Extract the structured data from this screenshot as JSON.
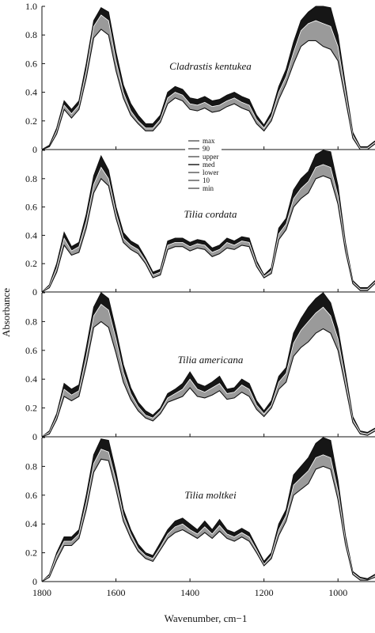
{
  "chart_data": [
    {
      "type": "area",
      "title": "Cladrastis kentukea",
      "ylim": [
        0,
        1.0
      ],
      "yticks": [
        "0",
        "0.2",
        "0.4",
        "0.6",
        "0.8",
        "1.0"
      ],
      "x": [
        1800,
        1780,
        1760,
        1740,
        1720,
        1700,
        1680,
        1660,
        1640,
        1620,
        1600,
        1580,
        1560,
        1540,
        1520,
        1500,
        1480,
        1460,
        1440,
        1420,
        1400,
        1380,
        1360,
        1340,
        1320,
        1300,
        1280,
        1260,
        1240,
        1220,
        1200,
        1180,
        1160,
        1140,
        1120,
        1100,
        1080,
        1060,
        1040,
        1020,
        1000,
        980,
        960,
        940,
        920,
        900
      ],
      "series": [
        {
          "values": [
            0.0,
            0.03,
            0.15,
            0.34,
            0.28,
            0.34,
            0.6,
            0.9,
            0.99,
            0.96,
            0.68,
            0.45,
            0.32,
            0.24,
            0.18,
            0.18,
            0.24,
            0.4,
            0.44,
            0.42,
            0.36,
            0.35,
            0.37,
            0.34,
            0.35,
            0.38,
            0.4,
            0.37,
            0.35,
            0.24,
            0.17,
            0.26,
            0.44,
            0.56,
            0.75,
            0.9,
            0.96,
            1.0,
            1.0,
            0.99,
            0.8,
            0.45,
            0.12,
            0.02,
            0.02,
            0.06
          ]
        },
        {
          "values": [
            0.0,
            0.02,
            0.13,
            0.31,
            0.25,
            0.31,
            0.55,
            0.86,
            0.94,
            0.9,
            0.62,
            0.4,
            0.27,
            0.2,
            0.15,
            0.15,
            0.21,
            0.36,
            0.4,
            0.38,
            0.32,
            0.31,
            0.33,
            0.3,
            0.31,
            0.34,
            0.36,
            0.33,
            0.31,
            0.21,
            0.15,
            0.23,
            0.4,
            0.51,
            0.68,
            0.83,
            0.88,
            0.9,
            0.88,
            0.86,
            0.72,
            0.4,
            0.1,
            0.01,
            0.01,
            0.05
          ]
        },
        {
          "values": [
            0.0,
            0.02,
            0.11,
            0.28,
            0.22,
            0.28,
            0.5,
            0.78,
            0.84,
            0.8,
            0.55,
            0.36,
            0.24,
            0.18,
            0.13,
            0.13,
            0.19,
            0.32,
            0.36,
            0.34,
            0.28,
            0.27,
            0.29,
            0.26,
            0.27,
            0.3,
            0.32,
            0.29,
            0.27,
            0.18,
            0.13,
            0.2,
            0.35,
            0.46,
            0.6,
            0.72,
            0.76,
            0.76,
            0.72,
            0.7,
            0.62,
            0.35,
            0.08,
            0.0,
            0.0,
            0.04
          ]
        }
      ]
    },
    {
      "type": "area",
      "title": "Tilia cordata",
      "ylim": [
        0,
        1.0
      ],
      "yticks": [
        "0",
        "0.2",
        "0.4",
        "0.6",
        "0.8",
        ""
      ],
      "x": [
        1800,
        1780,
        1760,
        1740,
        1720,
        1700,
        1680,
        1660,
        1640,
        1620,
        1600,
        1580,
        1560,
        1540,
        1520,
        1500,
        1480,
        1460,
        1440,
        1420,
        1400,
        1380,
        1360,
        1340,
        1320,
        1300,
        1280,
        1260,
        1240,
        1220,
        1200,
        1180,
        1160,
        1140,
        1120,
        1100,
        1080,
        1060,
        1040,
        1020,
        1000,
        980,
        960,
        940,
        920,
        900
      ],
      "series": [
        {
          "values": [
            0.0,
            0.05,
            0.2,
            0.42,
            0.32,
            0.35,
            0.55,
            0.82,
            0.96,
            0.86,
            0.6,
            0.42,
            0.36,
            0.33,
            0.24,
            0.14,
            0.16,
            0.36,
            0.38,
            0.38,
            0.35,
            0.37,
            0.36,
            0.31,
            0.33,
            0.38,
            0.36,
            0.39,
            0.38,
            0.22,
            0.12,
            0.17,
            0.45,
            0.52,
            0.72,
            0.8,
            0.85,
            0.97,
            1.0,
            0.99,
            0.75,
            0.35,
            0.08,
            0.03,
            0.03,
            0.08
          ]
        },
        {
          "values": [
            0.0,
            0.04,
            0.17,
            0.38,
            0.29,
            0.32,
            0.5,
            0.76,
            0.88,
            0.8,
            0.56,
            0.38,
            0.33,
            0.3,
            0.22,
            0.12,
            0.14,
            0.33,
            0.35,
            0.35,
            0.32,
            0.34,
            0.33,
            0.28,
            0.3,
            0.35,
            0.33,
            0.36,
            0.35,
            0.2,
            0.11,
            0.15,
            0.41,
            0.48,
            0.66,
            0.73,
            0.78,
            0.88,
            0.9,
            0.88,
            0.68,
            0.32,
            0.07,
            0.02,
            0.02,
            0.07
          ]
        },
        {
          "values": [
            0.0,
            0.03,
            0.14,
            0.33,
            0.26,
            0.28,
            0.45,
            0.7,
            0.8,
            0.75,
            0.52,
            0.35,
            0.3,
            0.27,
            0.2,
            0.1,
            0.12,
            0.3,
            0.32,
            0.32,
            0.29,
            0.31,
            0.3,
            0.25,
            0.27,
            0.31,
            0.3,
            0.33,
            0.32,
            0.18,
            0.1,
            0.13,
            0.37,
            0.44,
            0.6,
            0.66,
            0.7,
            0.8,
            0.82,
            0.8,
            0.62,
            0.29,
            0.06,
            0.01,
            0.01,
            0.06
          ]
        }
      ]
    },
    {
      "type": "area",
      "title": "Tilia americana",
      "ylim": [
        0,
        1.0
      ],
      "yticks": [
        "0",
        "0.2",
        "0.4",
        "0.6",
        "0.8",
        ""
      ],
      "x": [
        1800,
        1780,
        1760,
        1740,
        1720,
        1700,
        1680,
        1660,
        1640,
        1620,
        1600,
        1580,
        1560,
        1540,
        1520,
        1500,
        1480,
        1460,
        1440,
        1420,
        1400,
        1380,
        1360,
        1340,
        1320,
        1300,
        1280,
        1260,
        1240,
        1220,
        1200,
        1180,
        1160,
        1140,
        1120,
        1100,
        1080,
        1060,
        1040,
        1020,
        1000,
        980,
        960,
        940,
        920,
        900
      ],
      "series": [
        {
          "values": [
            0.0,
            0.04,
            0.16,
            0.37,
            0.33,
            0.36,
            0.62,
            0.9,
            1.0,
            0.96,
            0.74,
            0.5,
            0.34,
            0.24,
            0.18,
            0.15,
            0.2,
            0.3,
            0.33,
            0.37,
            0.45,
            0.37,
            0.35,
            0.38,
            0.42,
            0.33,
            0.34,
            0.4,
            0.37,
            0.25,
            0.18,
            0.25,
            0.42,
            0.48,
            0.72,
            0.82,
            0.9,
            0.96,
            1.0,
            0.93,
            0.75,
            0.45,
            0.14,
            0.04,
            0.03,
            0.06
          ]
        },
        {
          "values": [
            0.0,
            0.03,
            0.14,
            0.33,
            0.29,
            0.32,
            0.56,
            0.84,
            0.92,
            0.88,
            0.68,
            0.45,
            0.3,
            0.21,
            0.15,
            0.13,
            0.18,
            0.27,
            0.3,
            0.33,
            0.4,
            0.33,
            0.31,
            0.34,
            0.37,
            0.3,
            0.31,
            0.36,
            0.33,
            0.22,
            0.16,
            0.22,
            0.38,
            0.44,
            0.65,
            0.74,
            0.8,
            0.86,
            0.9,
            0.84,
            0.68,
            0.4,
            0.12,
            0.03,
            0.02,
            0.05
          ]
        },
        {
          "values": [
            0.0,
            0.02,
            0.12,
            0.28,
            0.25,
            0.28,
            0.5,
            0.76,
            0.8,
            0.76,
            0.58,
            0.38,
            0.26,
            0.18,
            0.13,
            0.11,
            0.16,
            0.24,
            0.26,
            0.28,
            0.34,
            0.28,
            0.27,
            0.29,
            0.32,
            0.26,
            0.27,
            0.31,
            0.28,
            0.19,
            0.14,
            0.2,
            0.33,
            0.38,
            0.56,
            0.62,
            0.66,
            0.72,
            0.75,
            0.72,
            0.6,
            0.35,
            0.1,
            0.02,
            0.01,
            0.04
          ]
        }
      ]
    },
    {
      "type": "area",
      "title": "Tilia moltkei",
      "ylim": [
        0,
        1.0
      ],
      "yticks": [
        "0",
        "0.2",
        "0.4",
        "0.6",
        "0.8",
        ""
      ],
      "x": [
        1800,
        1780,
        1760,
        1740,
        1720,
        1700,
        1680,
        1660,
        1640,
        1620,
        1600,
        1580,
        1560,
        1540,
        1520,
        1500,
        1480,
        1460,
        1440,
        1420,
        1400,
        1380,
        1360,
        1340,
        1320,
        1300,
        1280,
        1260,
        1240,
        1220,
        1200,
        1180,
        1160,
        1140,
        1120,
        1100,
        1080,
        1060,
        1040,
        1020,
        1000,
        980,
        960,
        940,
        920,
        900
      ],
      "series": [
        {
          "values": [
            0.0,
            0.05,
            0.2,
            0.31,
            0.31,
            0.36,
            0.6,
            0.88,
            0.99,
            0.98,
            0.76,
            0.5,
            0.36,
            0.26,
            0.2,
            0.18,
            0.27,
            0.36,
            0.42,
            0.44,
            0.4,
            0.36,
            0.42,
            0.36,
            0.43,
            0.36,
            0.34,
            0.37,
            0.34,
            0.24,
            0.14,
            0.2,
            0.4,
            0.5,
            0.74,
            0.8,
            0.86,
            0.96,
            1.0,
            0.98,
            0.7,
            0.32,
            0.07,
            0.03,
            0.02,
            0.05
          ]
        },
        {
          "values": [
            0.0,
            0.04,
            0.18,
            0.28,
            0.28,
            0.33,
            0.55,
            0.82,
            0.92,
            0.9,
            0.7,
            0.46,
            0.33,
            0.23,
            0.18,
            0.16,
            0.24,
            0.33,
            0.38,
            0.4,
            0.36,
            0.33,
            0.38,
            0.33,
            0.39,
            0.33,
            0.31,
            0.34,
            0.31,
            0.22,
            0.12,
            0.18,
            0.36,
            0.46,
            0.67,
            0.72,
            0.77,
            0.86,
            0.88,
            0.86,
            0.63,
            0.29,
            0.06,
            0.02,
            0.01,
            0.04
          ]
        },
        {
          "values": [
            0.0,
            0.03,
            0.15,
            0.25,
            0.25,
            0.3,
            0.5,
            0.76,
            0.85,
            0.84,
            0.64,
            0.42,
            0.3,
            0.21,
            0.16,
            0.14,
            0.22,
            0.3,
            0.34,
            0.36,
            0.33,
            0.3,
            0.34,
            0.3,
            0.35,
            0.3,
            0.28,
            0.31,
            0.28,
            0.2,
            0.11,
            0.16,
            0.32,
            0.42,
            0.6,
            0.64,
            0.68,
            0.78,
            0.8,
            0.78,
            0.57,
            0.26,
            0.05,
            0.01,
            0.01,
            0.03
          ]
        }
      ]
    }
  ],
  "shared": {
    "xlabel": "Wavenumber, cm−1",
    "ylabel": "Absorbance",
    "xlim": [
      1800,
      900
    ],
    "xticks": [
      1800,
      1600,
      1400,
      1200,
      1000
    ],
    "xtick_labels": [
      "1800",
      "1600",
      "1400",
      "1200",
      "1000"
    ]
  },
  "legend": {
    "placement": "top-center of second panel",
    "entries": [
      "max",
      "90",
      "upper",
      "med",
      "lower",
      "10",
      "min"
    ]
  },
  "colors": {
    "ink": "#111111",
    "band_dark": "#161616",
    "band_grey": "#9a9a9a"
  }
}
